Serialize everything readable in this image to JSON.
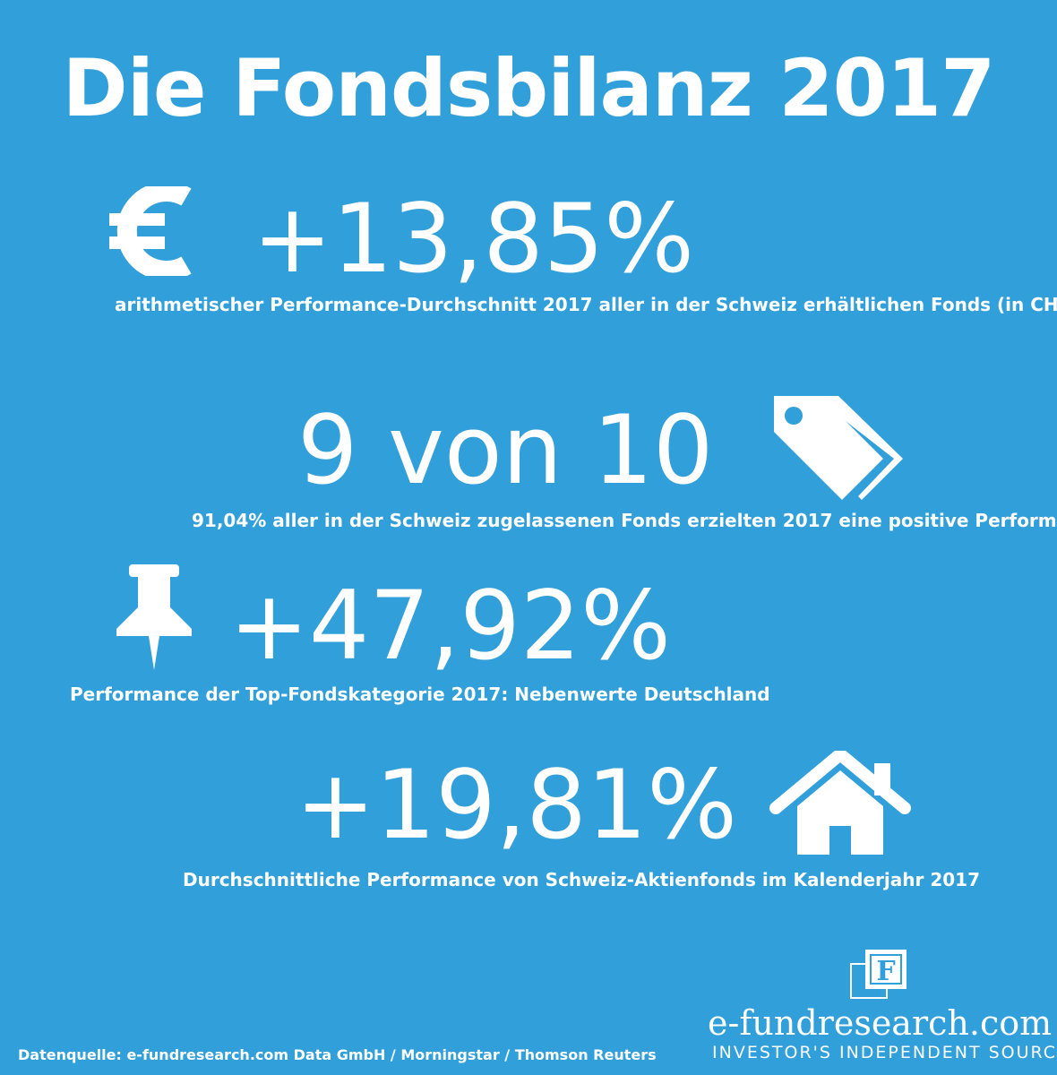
{
  "title": "Die Fondsbilanz 2017",
  "stats": [
    {
      "value": "+13,85%",
      "description": "arithmetischer Performance-Durchschnitt 2017 aller in der Schweiz erhältlichen Fonds (in CHF)",
      "icon": "euro-icon"
    },
    {
      "value": "9 von 10",
      "description": "91,04% aller in der Schweiz zugelassenen Fonds erzielten 2017 eine positive Performance",
      "icon": "tags-icon"
    },
    {
      "value": "+47,92%",
      "description": "Performance der Top-Fondskategorie 2017: Nebenwerte Deutschland",
      "icon": "pushpin-icon"
    },
    {
      "value": "+19,81%",
      "description": "Durchschnittliche Performance von Schweiz-Aktienfonds im Kalenderjahr 2017",
      "icon": "house-icon"
    }
  ],
  "footer": {
    "source": "Datenquelle: e-fundresearch.com Data GmbH / Morningstar / Thomson Reuters",
    "brand_name": "e-fundresearch.com",
    "brand_tagline": "INVESTOR'S INDEPENDENT SOURCE",
    "logo_letter": "F"
  },
  "colors": {
    "background": "#319fd9",
    "text": "#ffffff"
  }
}
